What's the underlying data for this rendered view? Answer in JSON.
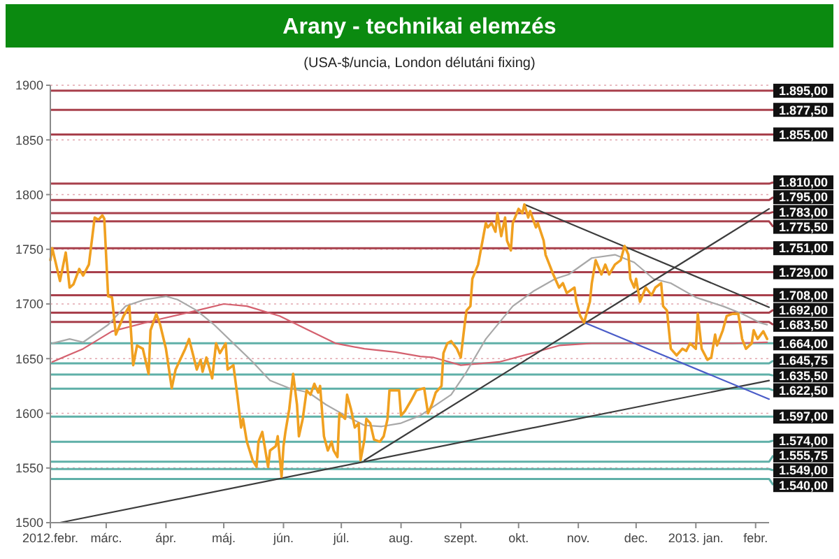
{
  "chart_data": {
    "type": "line",
    "title": "Arany - technikai elemzés",
    "subtitle": "(USA-$/uncia, London délutáni fixing)",
    "xlim": [
      "2012-02-01",
      "2013-02-08"
    ],
    "xticks": [
      {
        "value": "2012-02-01",
        "label": "2012.febr."
      },
      {
        "value": "2012-03-01",
        "label": "márc."
      },
      {
        "value": "2012-04-01",
        "label": "ápr."
      },
      {
        "value": "2012-05-01",
        "label": "máj."
      },
      {
        "value": "2012-06-01",
        "label": "jún."
      },
      {
        "value": "2012-07-01",
        "label": "júl."
      },
      {
        "value": "2012-08-01",
        "label": "aug."
      },
      {
        "value": "2012-09-01",
        "label": "szept."
      },
      {
        "value": "2012-10-01",
        "label": "okt."
      },
      {
        "value": "2012-11-01",
        "label": "nov."
      },
      {
        "value": "2012-12-01",
        "label": "dec."
      },
      {
        "value": "2013-01-01",
        "label": "2013. jan."
      },
      {
        "value": "2013-02-01",
        "label": "febr."
      }
    ],
    "ylim": [
      1500,
      1900
    ],
    "yticks": [
      1500,
      1550,
      1600,
      1650,
      1700,
      1750,
      1800,
      1850,
      1900
    ],
    "grid": "y",
    "series": [
      {
        "color": "#d4606e",
        "x": [
          "2012-02-02",
          "2012-02-18",
          "2012-03-04",
          "2012-03-26",
          "2012-04-17",
          "2012-05-01",
          "2012-05-13",
          "2012-05-30",
          "2012-06-14",
          "2012-06-28",
          "2012-07-13",
          "2012-07-29",
          "2012-08-11",
          "2012-08-18",
          "2012-09-01",
          "2012-09-21",
          "2012-10-08",
          "2012-10-22",
          "2012-11-08",
          "2012-12-03",
          "2012-12-27",
          "2013-01-20",
          "2013-02-07"
        ],
        "values": [
          1647,
          1659,
          1675,
          1685,
          1694,
          1700,
          1698,
          1689,
          1676,
          1664,
          1659,
          1656,
          1652,
          1651,
          1644,
          1647,
          1655,
          1662,
          1664,
          1664,
          1664,
          1664,
          1665
        ]
      },
      {
        "color": "#a8a8a8",
        "x": [
          "2012-02-02",
          "2012-02-11",
          "2012-02-18",
          "2012-03-02",
          "2012-03-11",
          "2012-03-21",
          "2012-04-01",
          "2012-04-07",
          "2012-04-17",
          "2012-04-26",
          "2012-05-06",
          "2012-05-16",
          "2012-05-25",
          "2012-06-04",
          "2012-06-14",
          "2012-06-23",
          "2012-07-03",
          "2012-07-13",
          "2012-07-22",
          "2012-08-01",
          "2012-08-11",
          "2012-08-27",
          "2012-09-04",
          "2012-09-14",
          "2012-09-28",
          "2012-10-09",
          "2012-10-20",
          "2012-10-27",
          "2012-11-08",
          "2012-11-20",
          "2012-11-30",
          "2012-12-10",
          "2012-12-19",
          "2013-01-01",
          "2013-01-15",
          "2013-01-25",
          "2013-02-03",
          "2013-02-07"
        ],
        "values": [
          1664,
          1668,
          1665,
          1681,
          1698,
          1704,
          1707,
          1704,
          1694,
          1681,
          1664,
          1647,
          1630,
          1623,
          1619,
          1608,
          1598,
          1589,
          1588,
          1591,
          1598,
          1617,
          1638,
          1668,
          1698,
          1712,
          1723,
          1727,
          1742,
          1745,
          1738,
          1723,
          1719,
          1706,
          1698,
          1691,
          1683,
          1681
        ]
      },
      {
        "type": "line",
        "color": "#3c3c3c",
        "x": [
          "2012-02-06",
          "2013-02-08"
        ],
        "values": [
          1500,
          1630
        ]
      },
      {
        "type": "line",
        "color": "#3c3c3c",
        "x": [
          "2012-07-13",
          "2013-02-08"
        ],
        "values": [
          1557,
          1787
        ]
      },
      {
        "type": "line",
        "color": "#3c3c3c",
        "x": [
          "2012-10-04",
          "2013-02-08"
        ],
        "values": [
          1791,
          1697
        ]
      },
      {
        "type": "line",
        "color": "#4a5cc8",
        "x": [
          "2012-11-04",
          "2013-02-08"
        ],
        "values": [
          1683,
          1613
        ]
      },
      {
        "color": "#f0a020",
        "x": [
          "2012-02-01",
          "2012-02-02",
          "2012-02-04",
          "2012-02-06",
          "2012-02-09",
          "2012-02-11",
          "2012-02-13",
          "2012-02-16",
          "2012-02-18",
          "2012-02-21",
          "2012-02-24",
          "2012-02-26",
          "2012-02-28",
          "2012-02-29",
          "2012-03-02",
          "2012-03-04",
          "2012-03-06",
          "2012-03-10",
          "2012-03-13",
          "2012-03-15",
          "2012-03-17",
          "2012-03-20",
          "2012-03-23",
          "2012-03-24",
          "2012-03-27",
          "2012-03-29",
          "2012-04-01",
          "2012-04-04",
          "2012-04-06",
          "2012-04-11",
          "2012-04-13",
          "2012-04-17",
          "2012-04-19",
          "2012-04-20",
          "2012-04-22",
          "2012-04-25",
          "2012-04-27",
          "2012-04-29",
          "2012-05-02",
          "2012-05-03",
          "2012-05-06",
          "2012-05-08",
          "2012-05-10",
          "2012-05-11",
          "2012-05-13",
          "2012-05-16",
          "2012-05-18",
          "2012-05-19",
          "2012-05-21",
          "2012-05-24",
          "2012-05-25",
          "2012-05-28",
          "2012-05-29",
          "2012-05-31",
          "2012-06-01",
          "2012-06-02",
          "2012-06-04",
          "2012-06-06",
          "2012-06-08",
          "2012-06-09",
          "2012-06-11",
          "2012-06-13",
          "2012-06-15",
          "2012-06-17",
          "2012-06-19",
          "2012-06-20",
          "2012-06-22",
          "2012-06-24",
          "2012-06-26",
          "2012-06-27",
          "2012-06-29",
          "2012-06-30",
          "2012-07-03",
          "2012-07-04",
          "2012-07-06",
          "2012-07-08",
          "2012-07-10",
          "2012-07-11",
          "2012-07-13",
          "2012-07-14",
          "2012-07-16",
          "2012-07-18",
          "2012-07-21",
          "2012-07-23",
          "2012-07-25",
          "2012-07-26",
          "2012-07-29",
          "2012-07-31",
          "2012-08-01",
          "2012-08-03",
          "2012-08-06",
          "2012-08-09",
          "2012-08-13",
          "2012-08-15",
          "2012-08-17",
          "2012-08-19",
          "2012-08-22",
          "2012-08-23",
          "2012-08-25",
          "2012-08-27",
          "2012-08-30",
          "2012-09-01",
          "2012-09-03",
          "2012-09-04",
          "2012-09-06",
          "2012-09-07",
          "2012-09-10",
          "2012-09-14",
          "2012-09-15",
          "2012-09-17",
          "2012-09-19",
          "2012-09-20",
          "2012-09-22",
          "2012-09-24",
          "2012-09-25",
          "2012-09-27",
          "2012-09-28",
          "2012-10-01",
          "2012-10-03",
          "2012-10-04",
          "2012-10-06",
          "2012-10-07",
          "2012-10-10",
          "2012-10-11",
          "2012-10-14",
          "2012-10-15",
          "2012-10-17",
          "2012-10-19",
          "2012-10-22",
          "2012-10-24",
          "2012-10-26",
          "2012-10-30",
          "2012-10-31",
          "2012-11-02",
          "2012-11-04",
          "2012-11-07",
          "2012-11-08",
          "2012-11-10",
          "2012-11-13",
          "2012-11-15",
          "2012-11-17",
          "2012-11-20",
          "2012-11-23",
          "2012-11-25",
          "2012-11-27",
          "2012-11-28",
          "2012-11-30",
          "2012-12-01",
          "2012-12-03",
          "2012-12-06",
          "2012-12-09",
          "2012-12-11",
          "2012-12-14",
          "2012-12-15",
          "2012-12-17",
          "2012-12-19",
          "2012-12-22",
          "2012-12-25",
          "2012-12-27",
          "2012-12-29",
          "2013-01-01",
          "2013-01-02",
          "2013-01-04",
          "2013-01-07",
          "2013-01-09",
          "2013-01-11",
          "2013-01-12",
          "2013-01-15",
          "2013-01-17",
          "2013-01-20",
          "2013-01-23",
          "2013-01-25",
          "2013-01-27",
          "2013-01-30",
          "2013-01-31",
          "2013-02-02",
          "2013-02-05",
          "2013-02-07"
        ],
        "values": [
          1740,
          1751,
          1736,
          1721,
          1747,
          1715,
          1718,
          1732,
          1726,
          1736,
          1779,
          1777,
          1781,
          1778,
          1707,
          1706,
          1672,
          1689,
          1698,
          1644,
          1662,
          1659,
          1636,
          1676,
          1691,
          1681,
          1659,
          1623,
          1640,
          1659,
          1668,
          1640,
          1649,
          1638,
          1651,
          1632,
          1664,
          1655,
          1664,
          1640,
          1644,
          1617,
          1587,
          1595,
          1574,
          1557,
          1551,
          1574,
          1583,
          1551,
          1566,
          1570,
          1579,
          1542,
          1570,
          1583,
          1604,
          1636,
          1608,
          1579,
          1595,
          1621,
          1617,
          1627,
          1619,
          1625,
          1579,
          1566,
          1574,
          1566,
          1560,
          1600,
          1595,
          1617,
          1604,
          1587,
          1591,
          1557,
          1576,
          1595,
          1591,
          1576,
          1574,
          1579,
          1595,
          1621,
          1621,
          1621,
          1598,
          1602,
          1611,
          1621,
          1623,
          1600,
          1608,
          1619,
          1625,
          1655,
          1664,
          1666,
          1659,
          1651,
          1681,
          1694,
          1698,
          1723,
          1736,
          1774,
          1770,
          1774,
          1766,
          1783,
          1762,
          1779,
          1758,
          1749,
          1774,
          1787,
          1783,
          1791,
          1779,
          1785,
          1770,
          1774,
          1758,
          1745,
          1736,
          1727,
          1715,
          1719,
          1710,
          1715,
          1702,
          1689,
          1683,
          1702,
          1719,
          1740,
          1727,
          1736,
          1727,
          1736,
          1740,
          1753,
          1745,
          1723,
          1715,
          1723,
          1702,
          1715,
          1708,
          1715,
          1719,
          1698,
          1694,
          1659,
          1653,
          1659,
          1657,
          1664,
          1659,
          1691,
          1659,
          1649,
          1651,
          1672,
          1662,
          1676,
          1689,
          1691,
          1691,
          1668,
          1659,
          1664,
          1676,
          1668,
          1675,
          1668
        ]
      }
    ],
    "ref_lines": [
      {
        "axis": "y",
        "value": 1895,
        "label": "1.895,00",
        "color": "#a8404c"
      },
      {
        "axis": "y",
        "value": 1877.5,
        "label": "1.877,50",
        "color": "#a8404c"
      },
      {
        "axis": "y",
        "value": 1855,
        "label": "1.855,00",
        "color": "#a8404c"
      },
      {
        "axis": "y",
        "value": 1810,
        "label": "1.810,00",
        "color": "#a8404c"
      },
      {
        "axis": "y",
        "value": 1795,
        "label": "1.795,00",
        "color": "#a8404c"
      },
      {
        "axis": "y",
        "value": 1783,
        "label": "1.783,00",
        "color": "#a8404c"
      },
      {
        "axis": "y",
        "value": 1775.5,
        "label": "1.775,50",
        "color": "#a8404c"
      },
      {
        "axis": "y",
        "value": 1751,
        "label": "1.751,00",
        "color": "#a8404c"
      },
      {
        "axis": "y",
        "value": 1729,
        "label": "1.729,00",
        "color": "#a8404c"
      },
      {
        "axis": "y",
        "value": 1708,
        "label": "1.708,00",
        "color": "#a8404c"
      },
      {
        "axis": "y",
        "value": 1692,
        "label": "1.692,00",
        "color": "#a8404c"
      },
      {
        "axis": "y",
        "value": 1683.5,
        "label": "1.683,50",
        "color": "#a8404c"
      },
      {
        "axis": "y",
        "value": 1664,
        "label": "1.664,00",
        "color": "#5fb0a8"
      },
      {
        "axis": "y",
        "value": 1645.75,
        "label": "1.645,75",
        "color": "#5fb0a8"
      },
      {
        "axis": "y",
        "value": 1635.5,
        "label": "1.635,50",
        "color": "#5fb0a8"
      },
      {
        "axis": "y",
        "value": 1622.5,
        "label": "1.622,50",
        "color": "#5fb0a8"
      },
      {
        "axis": "y",
        "value": 1597,
        "label": "1.597,00",
        "color": "#5fb0a8"
      },
      {
        "axis": "y",
        "value": 1574,
        "label": "1.574,00",
        "color": "#5fb0a8"
      },
      {
        "axis": "y",
        "value": 1555.75,
        "label": "1.555,75",
        "color": "#5fb0a8"
      },
      {
        "axis": "y",
        "value": 1549,
        "label": "1.549,00",
        "color": "#5fb0a8"
      },
      {
        "axis": "y",
        "value": 1540,
        "label": "1.540,00",
        "color": "#5fb0a8"
      }
    ]
  }
}
